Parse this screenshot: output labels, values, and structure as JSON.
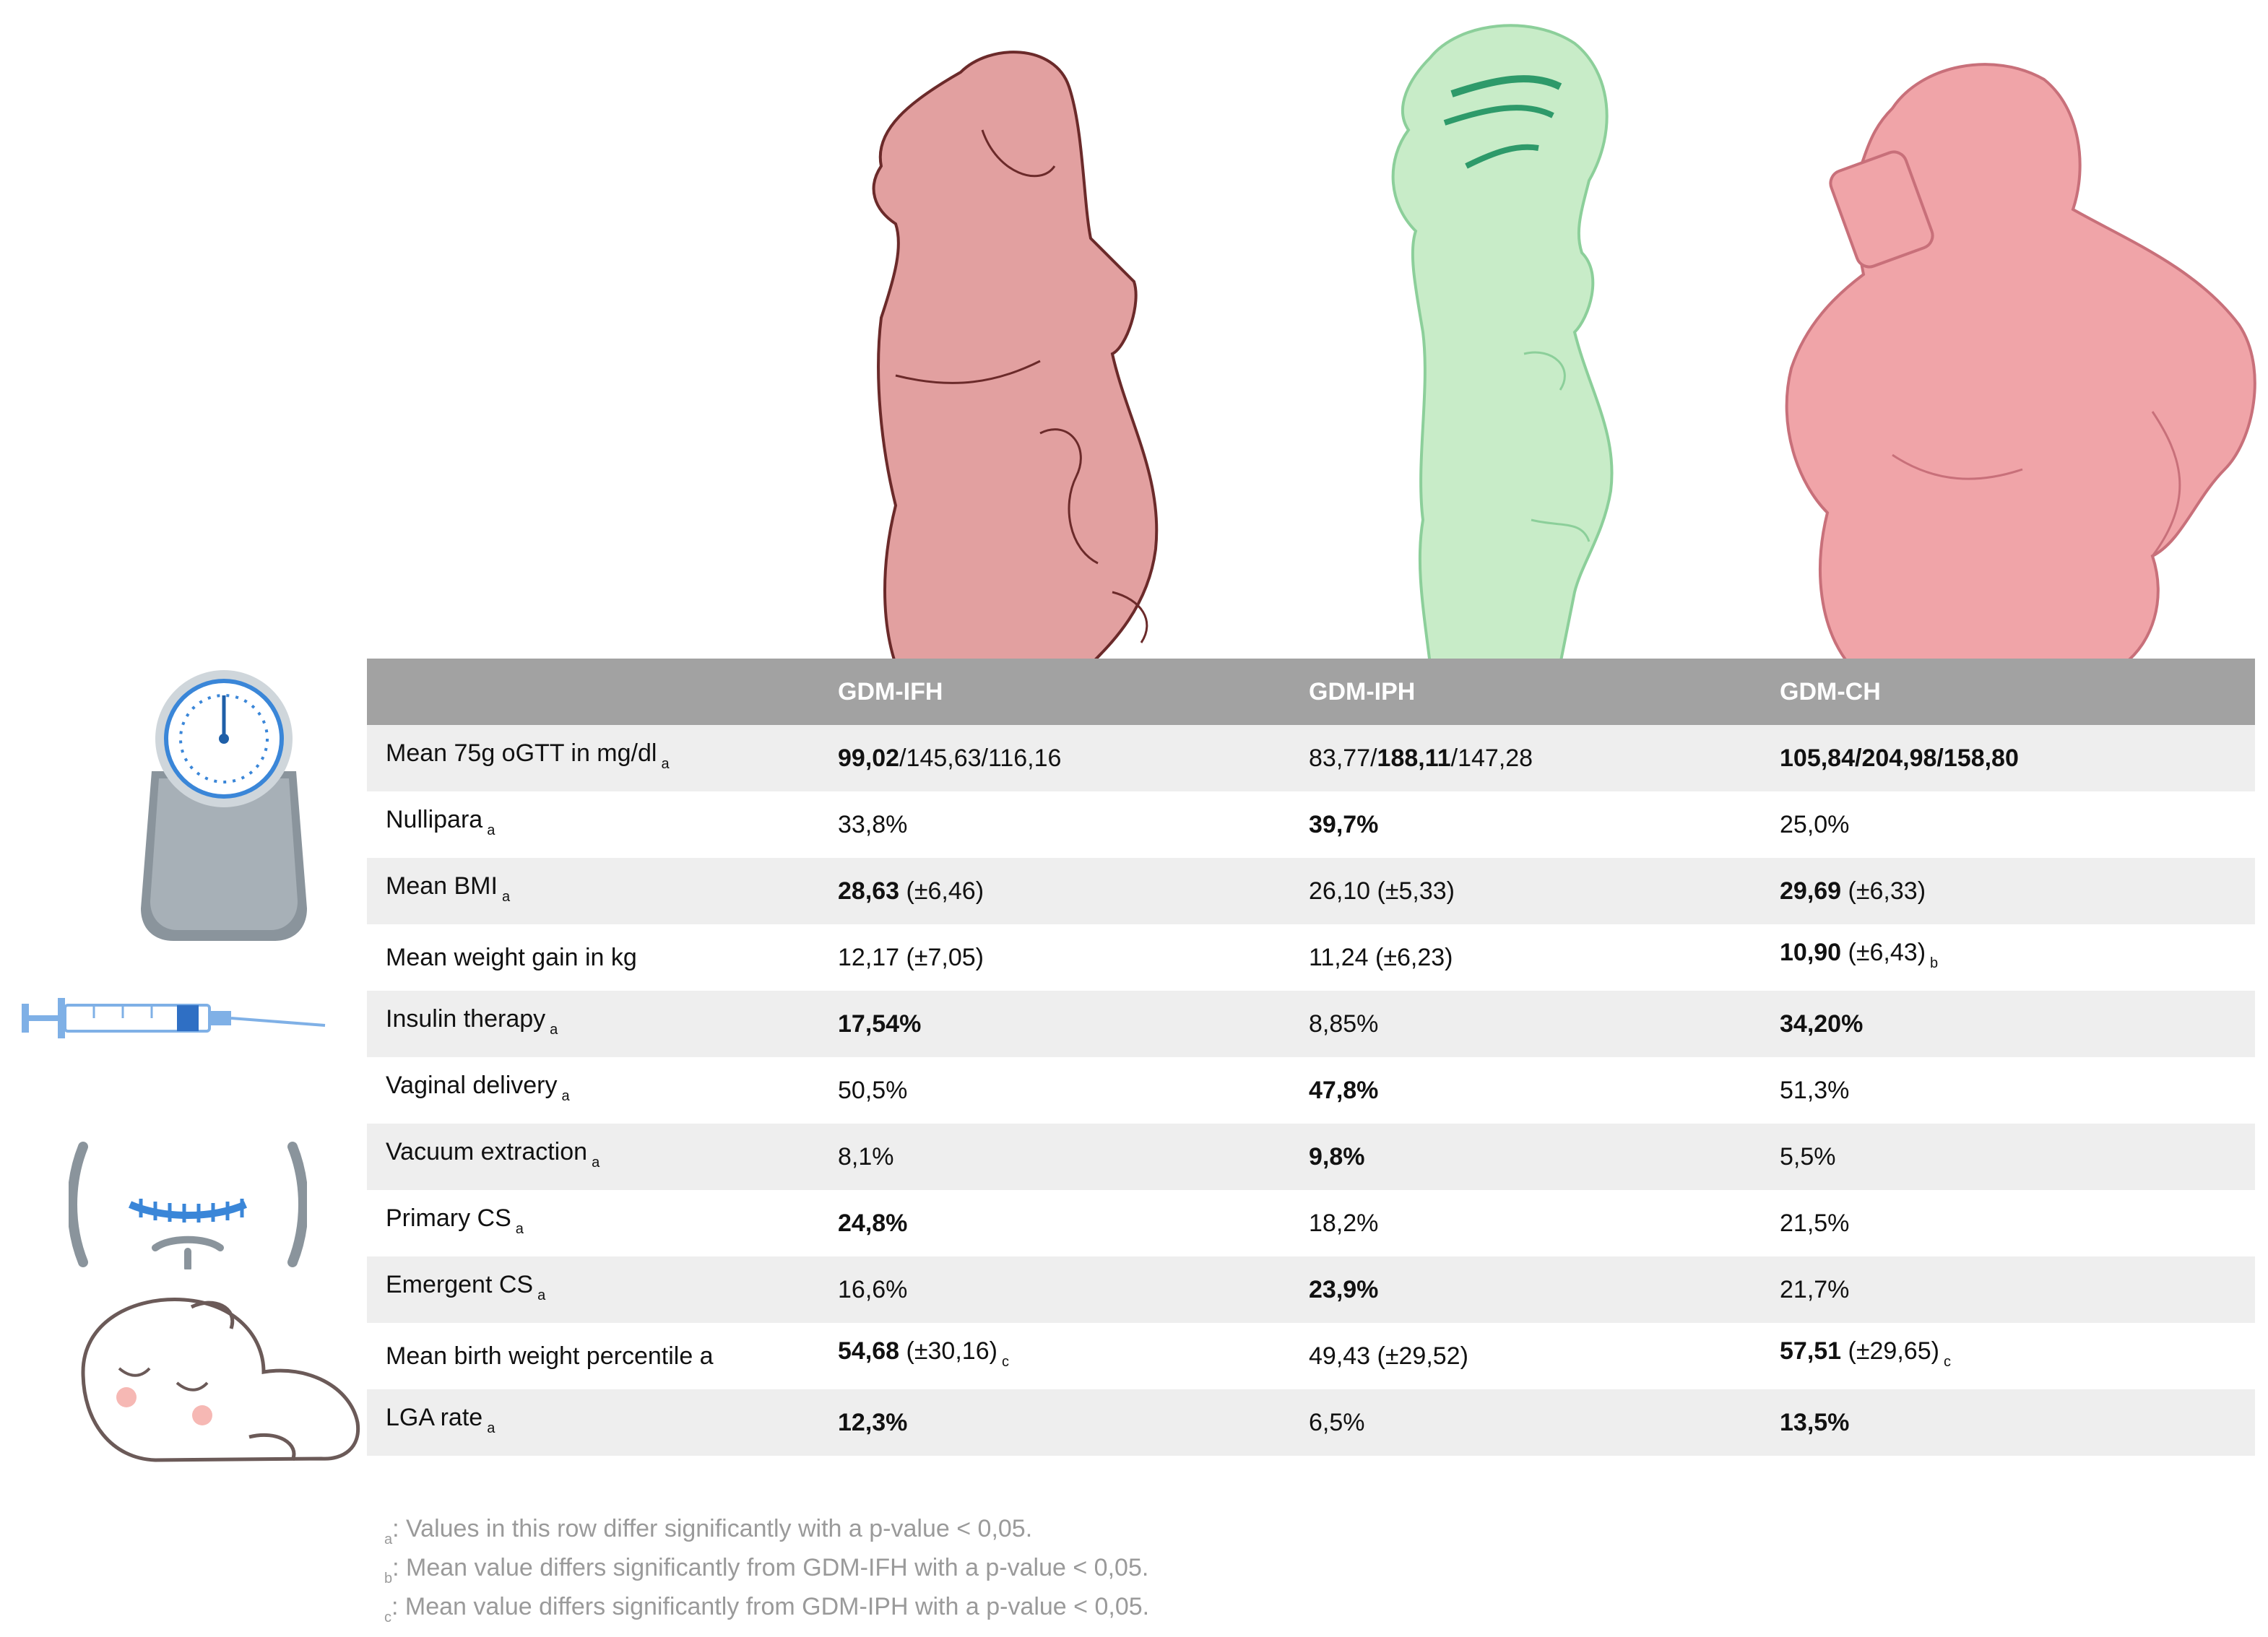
{
  "colors": {
    "header_bg": "#a2a2a2",
    "row_shade": "#eeeeee",
    "ifh_fill": "#e2a0a0",
    "iph_fill": "#c8ecc8",
    "ch_fill": "#f0a4a8",
    "icon_blue": "#3a86d8"
  },
  "icons": [
    "scale-icon",
    "syringe-icon",
    "cesarean-incision-icon",
    "sleeping-baby-icon"
  ],
  "table": {
    "headers": [
      "",
      "GDM-IFH",
      "GDM-IPH",
      "GDM-CH"
    ],
    "rows": [
      {
        "label": "Mean 75g oGTT in mg/dl",
        "label_sup": "a",
        "cells": [
          [
            {
              "t": "99,02",
              "b": true
            },
            {
              "t": "/145,63/116,16",
              "b": false
            }
          ],
          [
            {
              "t": "83,77/",
              "b": false
            },
            {
              "t": "188,11",
              "b": true
            },
            {
              "t": "/147,28",
              "b": false
            }
          ],
          [
            {
              "t": "105,84/204,98/158,80",
              "b": true
            }
          ]
        ],
        "subs": [
          "",
          "",
          ""
        ]
      },
      {
        "label": "Nullipara",
        "label_sup": "a",
        "cells": [
          [
            {
              "t": "33,8%",
              "b": false
            }
          ],
          [
            {
              "t": "39,7%",
              "b": true
            }
          ],
          [
            {
              "t": "25,0%",
              "b": false
            }
          ]
        ],
        "subs": [
          "",
          "",
          ""
        ]
      },
      {
        "label": "Mean BMI",
        "label_sup": "a",
        "cells": [
          [
            {
              "t": "28,63",
              "b": true
            },
            {
              "t": " (±6,46)",
              "b": false
            }
          ],
          [
            {
              "t": "26,10 (±5,33)",
              "b": false
            }
          ],
          [
            {
              "t": "29,69",
              "b": true
            },
            {
              "t": " (±6,33)",
              "b": false
            }
          ]
        ],
        "subs": [
          "",
          "",
          ""
        ]
      },
      {
        "label": "Mean weight gain in kg",
        "label_sup": "",
        "cells": [
          [
            {
              "t": "12,17 (±7,05)",
              "b": false
            }
          ],
          [
            {
              "t": "11,24 (±6,23)",
              "b": false
            }
          ],
          [
            {
              "t": "10,90",
              "b": true
            },
            {
              "t": " (±6,43)",
              "b": false
            }
          ]
        ],
        "subs": [
          "",
          "",
          "b"
        ]
      },
      {
        "label": "Insulin therapy",
        "label_sup": "a",
        "cells": [
          [
            {
              "t": "17,54%",
              "b": true
            }
          ],
          [
            {
              "t": "8,85%",
              "b": false
            }
          ],
          [
            {
              "t": "34,20%",
              "b": true
            }
          ]
        ],
        "subs": [
          "",
          "",
          ""
        ]
      },
      {
        "label": "Vaginal delivery",
        "label_sup": "a",
        "cells": [
          [
            {
              "t": "50,5%",
              "b": false
            }
          ],
          [
            {
              "t": "47,8%",
              "b": true
            }
          ],
          [
            {
              "t": "51,3%",
              "b": false
            }
          ]
        ],
        "subs": [
          "",
          "",
          ""
        ]
      },
      {
        "label": "Vacuum extraction",
        "label_sup": "a",
        "cells": [
          [
            {
              "t": "8,1%",
              "b": false
            }
          ],
          [
            {
              "t": "9,8%",
              "b": true
            }
          ],
          [
            {
              "t": "5,5%",
              "b": false
            }
          ]
        ],
        "subs": [
          "",
          "",
          ""
        ]
      },
      {
        "label": "Primary CS",
        "label_sup": "a",
        "cells": [
          [
            {
              "t": "24,8%",
              "b": true
            }
          ],
          [
            {
              "t": "18,2%",
              "b": false
            }
          ],
          [
            {
              "t": "21,5%",
              "b": false
            }
          ]
        ],
        "subs": [
          "",
          "",
          ""
        ]
      },
      {
        "label": "Emergent CS",
        "label_sup": "a",
        "cells": [
          [
            {
              "t": "16,6%",
              "b": false
            }
          ],
          [
            {
              "t": "23,9%",
              "b": true
            }
          ],
          [
            {
              "t": "21,7%",
              "b": false
            }
          ]
        ],
        "subs": [
          "",
          "",
          ""
        ]
      },
      {
        "label": "Mean birth weight percentile a",
        "label_sup": "",
        "cells": [
          [
            {
              "t": "54,68",
              "b": true
            },
            {
              "t": " (±30,16)",
              "b": false
            }
          ],
          [
            {
              "t": "49,43 (±29,52)",
              "b": false
            }
          ],
          [
            {
              "t": "57,51",
              "b": true
            },
            {
              "t": " (±29,65)",
              "b": false
            }
          ]
        ],
        "subs": [
          "c",
          "",
          "c"
        ]
      },
      {
        "label": "LGA rate",
        "label_sup": "a",
        "cells": [
          [
            {
              "t": "12,3%",
              "b": true
            }
          ],
          [
            {
              "t": "6,5%",
              "b": false
            }
          ],
          [
            {
              "t": "13,5%",
              "b": true
            }
          ]
        ],
        "subs": [
          "",
          "",
          ""
        ]
      }
    ]
  },
  "footnotes": [
    {
      "mark": "a",
      "text": ": Values in this row differ significantly with a p-value < 0,05."
    },
    {
      "mark": "b",
      "text": ": Mean value differs significantly from GDM-IFH with a p-value < 0,05."
    },
    {
      "mark": "c",
      "text": ": Mean value differs significantly from GDM-IPH with a p-value < 0,05."
    }
  ]
}
